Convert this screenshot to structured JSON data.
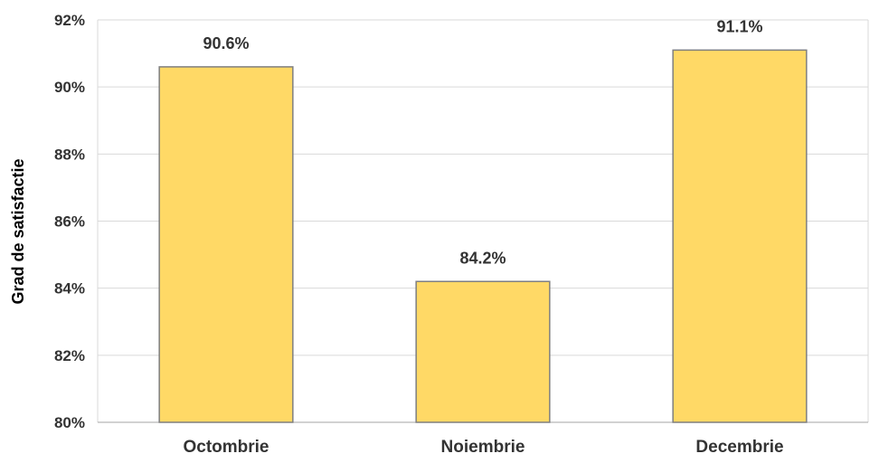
{
  "chart_data": {
    "type": "bar",
    "title": "",
    "xlabel": "",
    "ylabel": "Grad de satisfactie",
    "categories": [
      "Octombrie",
      "Noiembrie",
      "Decembrie"
    ],
    "values": [
      90.6,
      84.2,
      91.1
    ],
    "data_labels": [
      "90.6%",
      "84.2%",
      "91.1%"
    ],
    "ylim": [
      80,
      92
    ],
    "yticks": [
      80,
      82,
      84,
      86,
      88,
      90,
      92
    ],
    "ytick_labels": [
      "80%",
      "82%",
      "84%",
      "86%",
      "88%",
      "90%",
      "92%"
    ],
    "grid": true,
    "legend": "none",
    "colors": {
      "bar_fill": "#FFD966",
      "bar_stroke": "#7F7F7F",
      "grid": "#D9D9D9",
      "axis": "#A6A6A6"
    }
  }
}
